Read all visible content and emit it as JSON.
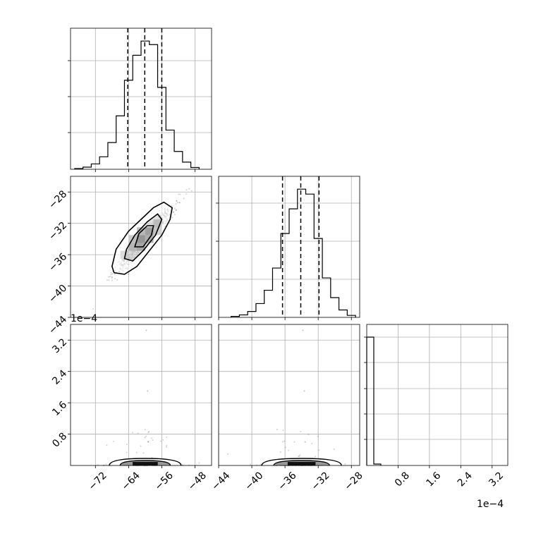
{
  "chart_data": [
    {
      "type": "histogram",
      "panel": "hist-1",
      "xlim": [
        -78,
        -44
      ],
      "bins_x": [
        -76,
        -74,
        -72,
        -70,
        -68,
        -66,
        -64,
        -62,
        -60,
        -58,
        -56,
        -54,
        -52,
        -50,
        -48
      ],
      "heights": [
        0.2,
        0.6,
        1.5,
        3.5,
        7.5,
        15,
        25,
        32,
        36,
        35,
        23,
        11,
        5,
        2,
        0.5
      ],
      "quantile_lines": [
        -64.2,
        -60.1,
        -56.0
      ],
      "x_ticks": [
        -72,
        -64,
        -56,
        -48
      ]
    },
    {
      "type": "scatter-contour",
      "panel": "scatter-1",
      "xlim": [
        -78,
        -44
      ],
      "ylim": [
        -44,
        -26
      ],
      "x_ticks": [
        -72,
        -64,
        -56,
        -48
      ],
      "y_ticks": [
        -28,
        -32,
        -36,
        -40,
        -44
      ],
      "center": [
        -60,
        -34
      ],
      "contours": [
        {
          "level": "outer",
          "points": [
            [
              -68,
              -37.5
            ],
            [
              -67.5,
              -38.3
            ],
            [
              -65,
              -38.5
            ],
            [
              -62,
              -37.5
            ],
            [
              -59,
              -35.5
            ],
            [
              -56,
              -33.5
            ],
            [
              -54,
              -31.5
            ],
            [
              -53.5,
              -30
            ],
            [
              -55.5,
              -29.3
            ],
            [
              -58,
              -30
            ],
            [
              -61,
              -31.5
            ],
            [
              -64,
              -33
            ],
            [
              -67,
              -35.3
            ],
            [
              -68,
              -37.5
            ]
          ]
        },
        {
          "level": "middle",
          "points": [
            [
              -65,
              -36.5
            ],
            [
              -63,
              -36.8
            ],
            [
              -60.5,
              -35.5
            ],
            [
              -57.5,
              -33.5
            ],
            [
              -56,
              -31.5
            ],
            [
              -57,
              -30.8
            ],
            [
              -59.5,
              -31.8
            ],
            [
              -62.5,
              -33.5
            ],
            [
              -64.5,
              -35.3
            ],
            [
              -65,
              -36.5
            ]
          ]
        },
        {
          "level": "inner",
          "points": [
            [
              -62.5,
              -35
            ],
            [
              -60.5,
              -35
            ],
            [
              -58.5,
              -33.5
            ],
            [
              -58,
              -32.3
            ],
            [
              -59.5,
              -32.3
            ],
            [
              -61.5,
              -33.3
            ],
            [
              -62.5,
              -35
            ]
          ]
        }
      ],
      "density_blocks": [
        {
          "x": -61,
          "y": -34,
          "shade": "#000000"
        },
        {
          "x": -59,
          "y": -33,
          "shade": "#222222"
        },
        {
          "x": -61,
          "y": -35,
          "shade": "#3a3a3a"
        },
        {
          "x": -63,
          "y": -35,
          "shade": "#6a6a6a"
        },
        {
          "x": -59,
          "y": -34,
          "shade": "#555555"
        },
        {
          "x": -57,
          "y": -32,
          "shade": "#808080"
        },
        {
          "x": -63,
          "y": -34,
          "shade": "#8a8a8a"
        },
        {
          "x": -57,
          "y": -33,
          "shade": "#999999"
        },
        {
          "x": -61,
          "y": -33,
          "shade": "#777777"
        },
        {
          "x": -65,
          "y": -36,
          "shade": "#b0b0b0"
        }
      ]
    },
    {
      "type": "histogram",
      "panel": "hist-2",
      "xlim": [
        -44,
        -27
      ],
      "bins_x": [
        -42,
        -41,
        -40,
        -39,
        -38,
        -37,
        -36,
        -35,
        -34,
        -33,
        -32,
        -31,
        -30,
        -29,
        -28
      ],
      "heights": [
        0.2,
        0.5,
        1.2,
        2.8,
        5.5,
        10,
        17,
        22,
        26,
        25,
        16,
        8,
        4,
        1.5,
        0.4
      ],
      "quantile_lines": [
        -36.3,
        -34.1,
        -31.9
      ],
      "x_ticks": [
        -44,
        -40,
        -36,
        -32,
        -28
      ]
    },
    {
      "type": "scatter-contour",
      "panel": "scatter-2",
      "xlim": [
        -78,
        -44
      ],
      "ylim": [
        0,
        3.6
      ],
      "x_ticks": [
        -72,
        -64,
        -56,
        -48
      ],
      "y_ticks": [
        0.8,
        1.6,
        2.4,
        3.2
      ],
      "y_scale_label": "1e−4"
    },
    {
      "type": "scatter-contour",
      "panel": "scatter-3",
      "xlim": [
        -44,
        -27
      ],
      "ylim": [
        0,
        3.6
      ],
      "x_ticks": [
        -44,
        -40,
        -36,
        -32,
        -28
      ]
    },
    {
      "type": "histogram",
      "panel": "hist-3",
      "xlim": [
        0,
        3.6
      ],
      "x_ticks": [
        0.8,
        1.6,
        2.4,
        3.2
      ],
      "x_scale_label": "1e−4",
      "heights": [
        100,
        2,
        0.5
      ]
    }
  ],
  "labels": {
    "x_scale_1e4": "1e−4",
    "y_scale_1e4": "1e−4",
    "tick_labels_x_left": [
      "−72",
      "−64",
      "−56",
      "−48"
    ],
    "tick_labels_x_mid": [
      "−44",
      "−40",
      "−36",
      "−32",
      "−28"
    ],
    "tick_labels_x_right": [
      "0.8",
      "1.6",
      "2.4",
      "3.2"
    ],
    "tick_labels_y_mid": [
      "−28",
      "−32",
      "−36",
      "−40",
      "−44"
    ],
    "tick_labels_y_bottom": [
      "3.2",
      "2.4",
      "1.6",
      "0.8"
    ]
  }
}
